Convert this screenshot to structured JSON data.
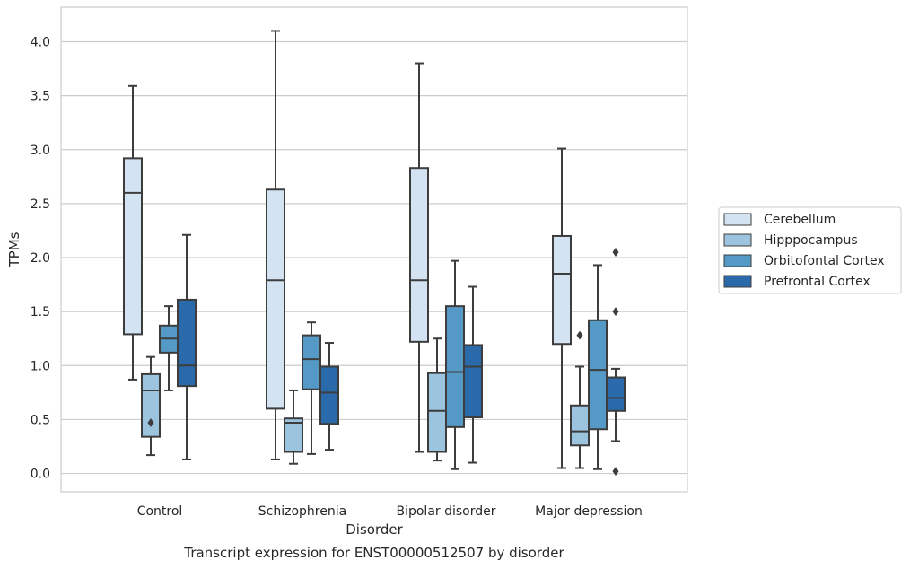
{
  "chart_data": {
    "type": "box",
    "title": "Transcript expression for ENST00000512507 by disorder",
    "xlabel": "Disorder",
    "ylabel": "TPMs",
    "ylim": [
      -0.17,
      4.32
    ],
    "yticks": [
      "0.0",
      "0.5",
      "1.0",
      "1.5",
      "2.0",
      "2.5",
      "3.0",
      "3.5",
      "4.0"
    ],
    "ytick_values": [
      0,
      0.5,
      1,
      1.5,
      2,
      2.5,
      3,
      3.5,
      4
    ],
    "grid": "horizontal",
    "legend_position": "right",
    "categories": [
      "Control",
      "Schizophrenia",
      "Bipolar disorder",
      "Major depression"
    ],
    "series": [
      {
        "name": "Cerebellum",
        "color": "#d4e3f2",
        "boxes": [
          {
            "whisker_low": 0.87,
            "q1": 1.29,
            "median": 2.6,
            "q3": 2.92,
            "whisker_high": 3.59,
            "outliers": []
          },
          {
            "whisker_low": 0.13,
            "q1": 0.6,
            "median": 1.79,
            "q3": 2.63,
            "whisker_high": 4.1,
            "outliers": []
          },
          {
            "whisker_low": 0.2,
            "q1": 1.22,
            "median": 1.79,
            "q3": 2.83,
            "whisker_high": 3.8,
            "outliers": []
          },
          {
            "whisker_low": 0.05,
            "q1": 1.2,
            "median": 1.85,
            "q3": 2.2,
            "whisker_high": 3.01,
            "outliers": []
          }
        ]
      },
      {
        "name": "Hipppocampus",
        "color": "#9dc4df",
        "boxes": [
          {
            "whisker_low": 0.17,
            "q1": 0.34,
            "median": 0.77,
            "q3": 0.92,
            "whisker_high": 1.08,
            "outliers": [
              0.47
            ]
          },
          {
            "whisker_low": 0.09,
            "q1": 0.2,
            "median": 0.47,
            "q3": 0.51,
            "whisker_high": 0.77,
            "outliers": []
          },
          {
            "whisker_low": 0.12,
            "q1": 0.2,
            "median": 0.58,
            "q3": 0.93,
            "whisker_high": 1.25,
            "outliers": []
          },
          {
            "whisker_low": 0.05,
            "q1": 0.26,
            "median": 0.39,
            "q3": 0.63,
            "whisker_high": 0.99,
            "outliers": [
              1.28
            ]
          }
        ]
      },
      {
        "name": "Orbitofontal Cortex",
        "color": "#5599c6",
        "boxes": [
          {
            "whisker_low": 0.77,
            "q1": 1.12,
            "median": 1.25,
            "q3": 1.37,
            "whisker_high": 1.55,
            "outliers": []
          },
          {
            "whisker_low": 0.18,
            "q1": 0.78,
            "median": 1.06,
            "q3": 1.28,
            "whisker_high": 1.4,
            "outliers": []
          },
          {
            "whisker_low": 0.04,
            "q1": 0.43,
            "median": 0.94,
            "q3": 1.55,
            "whisker_high": 1.97,
            "outliers": []
          },
          {
            "whisker_low": 0.04,
            "q1": 0.41,
            "median": 0.96,
            "q3": 1.42,
            "whisker_high": 1.93,
            "outliers": []
          }
        ]
      },
      {
        "name": "Prefrontal Cortex",
        "color": "#2a6aab",
        "boxes": [
          {
            "whisker_low": 0.13,
            "q1": 0.81,
            "median": 1.0,
            "q3": 1.61,
            "whisker_high": 2.21,
            "outliers": []
          },
          {
            "whisker_low": 0.22,
            "q1": 0.46,
            "median": 0.75,
            "q3": 0.99,
            "whisker_high": 1.21,
            "outliers": []
          },
          {
            "whisker_low": 0.1,
            "q1": 0.52,
            "median": 0.99,
            "q3": 1.19,
            "whisker_high": 1.73,
            "outliers": []
          },
          {
            "whisker_low": 0.3,
            "q1": 0.58,
            "median": 0.7,
            "q3": 0.89,
            "whisker_high": 0.97,
            "outliers": [
              2.05,
              1.5,
              0.02
            ]
          }
        ]
      }
    ]
  }
}
